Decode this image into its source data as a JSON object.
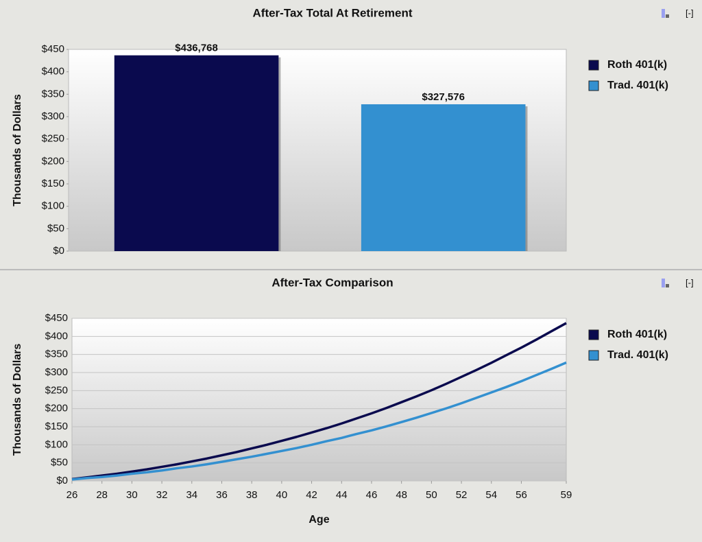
{
  "chart_data": [
    {
      "type": "bar",
      "title": "After-Tax Total At Retirement",
      "control_label": "[-]",
      "y_label": "Thousands of Dollars",
      "categories": [
        null
      ],
      "series": [
        {
          "name": "Roth 401(k)",
          "color": "#0a0a4e",
          "values": [
            436.768
          ],
          "value_labels": [
            "$436,768"
          ]
        },
        {
          "name": "Trad. 401(k)",
          "color": "#3390d0",
          "values": [
            327.576
          ],
          "value_labels": [
            "$327,576"
          ]
        }
      ],
      "ylim": [
        0,
        450
      ],
      "yticks": [
        {
          "value": 0,
          "label": "$0"
        },
        {
          "value": 50,
          "label": "$50"
        },
        {
          "value": 100,
          "label": "$100"
        },
        {
          "value": 150,
          "label": "$150"
        },
        {
          "value": 200,
          "label": "$200"
        },
        {
          "value": 250,
          "label": "$250"
        },
        {
          "value": 300,
          "label": "$300"
        },
        {
          "value": 350,
          "label": "$350"
        },
        {
          "value": 400,
          "label": "$400"
        },
        {
          "value": 450,
          "label": "$450"
        }
      ],
      "grid": false,
      "legend": "right"
    },
    {
      "type": "line",
      "title": "After-Tax Comparison",
      "control_label": "[-]",
      "y_label": "Thousands of Dollars",
      "x_label": "Age",
      "x": [
        26,
        27,
        28,
        29,
        30,
        31,
        32,
        33,
        34,
        35,
        36,
        37,
        38,
        39,
        40,
        41,
        42,
        43,
        44,
        45,
        46,
        47,
        48,
        49,
        50,
        51,
        52,
        53,
        54,
        55,
        56,
        57,
        58,
        59
      ],
      "series": [
        {
          "name": "Roth 401(k)",
          "color": "#0a0a4e",
          "values": [
            5,
            10,
            15,
            20,
            26,
            32,
            39,
            46,
            54,
            62,
            71,
            80,
            90,
            100,
            111,
            122,
            134,
            146,
            159,
            173,
            187,
            202,
            218,
            234,
            251,
            269,
            288,
            307,
            327,
            348,
            369,
            391,
            414,
            436.768
          ]
        },
        {
          "name": "Trad. 401(k)",
          "color": "#3390d0",
          "values": [
            4,
            8,
            11,
            15,
            20,
            24,
            29,
            35,
            40,
            46,
            53,
            60,
            67,
            75,
            83,
            91,
            100,
            110,
            119,
            130,
            140,
            151,
            163,
            175,
            188,
            201,
            215,
            230,
            245,
            260,
            276,
            293,
            310,
            327.576
          ]
        }
      ],
      "xlim": [
        26,
        59
      ],
      "xticks": [
        26,
        28,
        30,
        32,
        34,
        36,
        38,
        40,
        42,
        44,
        46,
        48,
        50,
        52,
        54,
        56,
        59
      ],
      "ylim": [
        0,
        450
      ],
      "yticks": [
        {
          "value": 0,
          "label": "$0"
        },
        {
          "value": 50,
          "label": "$50"
        },
        {
          "value": 100,
          "label": "$100"
        },
        {
          "value": 150,
          "label": "$150"
        },
        {
          "value": 200,
          "label": "$200"
        },
        {
          "value": 250,
          "label": "$250"
        },
        {
          "value": 300,
          "label": "$300"
        },
        {
          "value": 350,
          "label": "$350"
        },
        {
          "value": 400,
          "label": "$400"
        },
        {
          "value": 450,
          "label": "$450"
        }
      ],
      "grid": true,
      "legend": "right"
    }
  ]
}
